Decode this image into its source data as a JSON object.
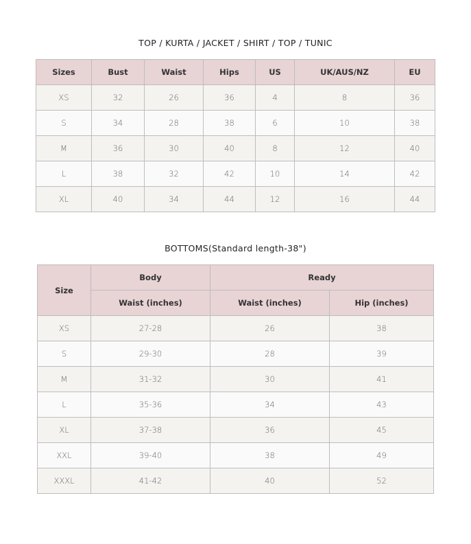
{
  "top": {
    "title": "TOP / KURTA / JACKET / SHIRT / TOP / TUNIC",
    "headers": [
      "Sizes",
      "Bust",
      "Waist",
      "Hips",
      "US",
      "UK/AUS/NZ",
      "EU"
    ],
    "rows": [
      [
        "XS",
        "32",
        "26",
        "36",
        "4",
        "8",
        "36"
      ],
      [
        "S",
        "34",
        "28",
        "38",
        "6",
        "10",
        "38"
      ],
      [
        "M",
        "36",
        "30",
        "40",
        "8",
        "12",
        "40"
      ],
      [
        "L",
        "38",
        "32",
        "42",
        "10",
        "14",
        "42"
      ],
      [
        "XL",
        "40",
        "34",
        "44",
        "12",
        "16",
        "44"
      ]
    ]
  },
  "bottoms": {
    "title": "BOTTOMS(Standard length-38\")",
    "size_header": "Size",
    "group_headers": [
      "Body",
      "Ready"
    ],
    "sub_headers": [
      "Waist (inches)",
      "Waist (inches)",
      "Hip (inches)"
    ],
    "rows": [
      [
        "XS",
        "27-28",
        "26",
        "38"
      ],
      [
        "S",
        "29-30",
        "28",
        "39"
      ],
      [
        "M",
        "31-32",
        "30",
        "41"
      ],
      [
        "L",
        "35-36",
        "34",
        "43"
      ],
      [
        "XL",
        "37-38",
        "36",
        "45"
      ],
      [
        "XXL",
        "39-40",
        "38",
        "49"
      ],
      [
        "XXXL",
        "41-42",
        "40",
        "52"
      ]
    ]
  },
  "colors": {
    "header_bg": "#e8d3d5",
    "row_odd": "#f5f3f0",
    "row_even": "#fafafa",
    "border": "#bdbdbd"
  }
}
